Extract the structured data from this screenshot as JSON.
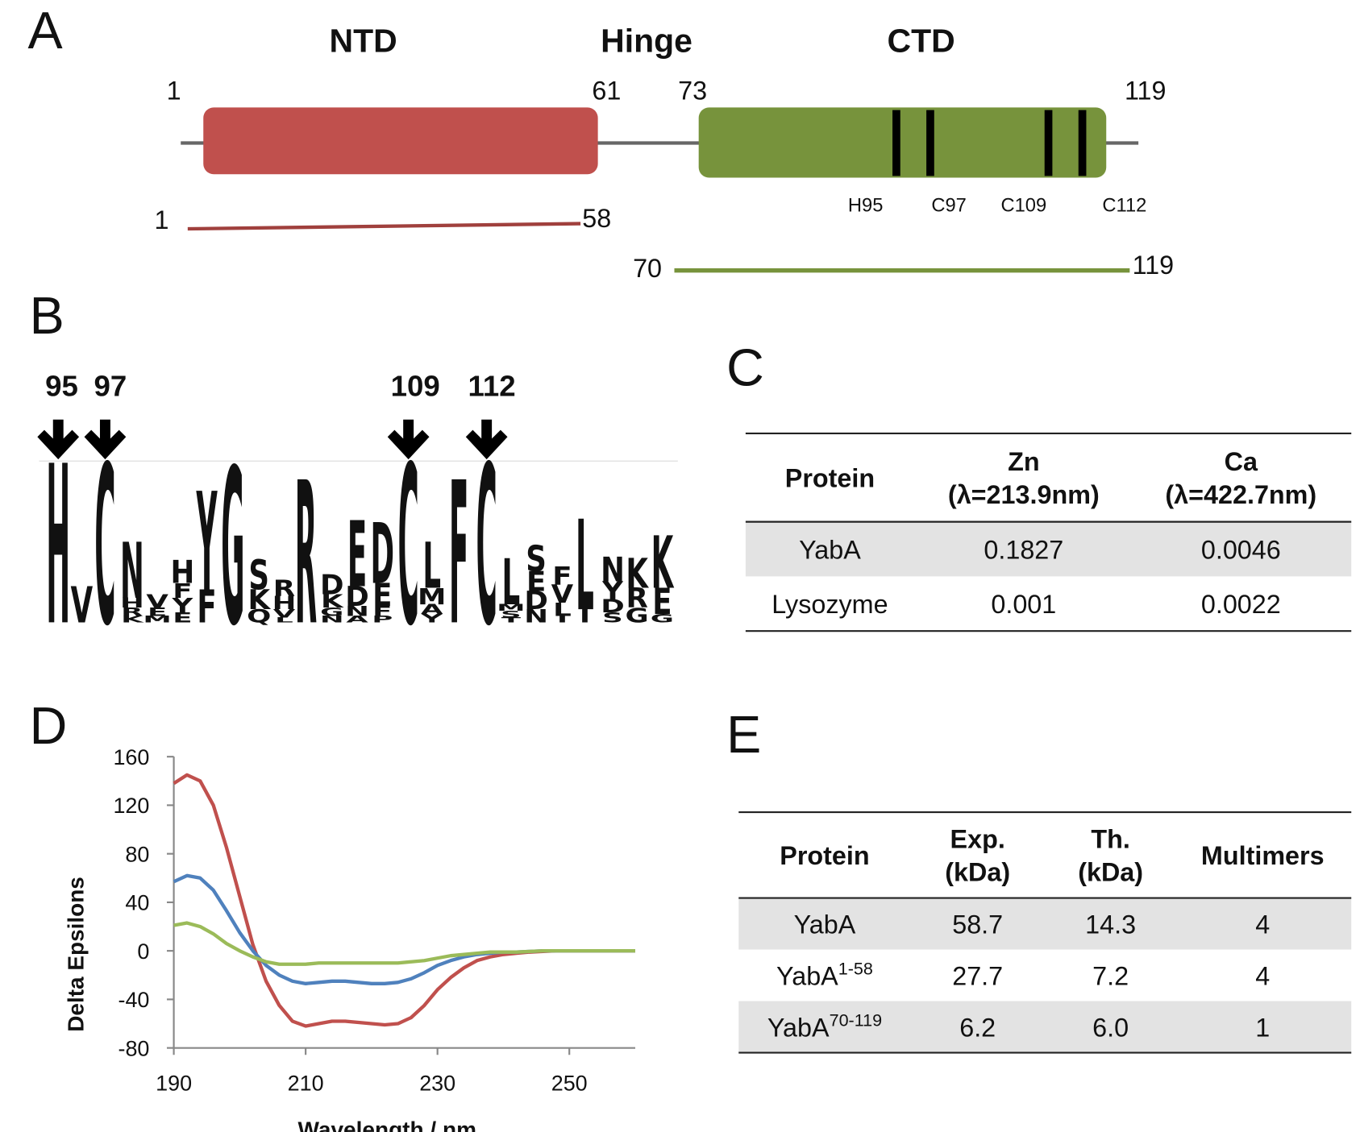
{
  "panel_a": {
    "label": "A",
    "domains": [
      "NTD",
      "Hinge",
      "CTD"
    ],
    "positions": [
      "1",
      "61",
      "73",
      "119"
    ],
    "residues": [
      "H95",
      "C97",
      "C109",
      "C112"
    ],
    "constructs": [
      {
        "start": "1",
        "end": "58"
      },
      {
        "start": "70",
        "end": "119"
      }
    ]
  },
  "panel_b": {
    "label": "B",
    "positions": [
      "95",
      "97",
      "109",
      "112"
    ],
    "letter_colors": {
      "H": "#1414c8",
      "K": "#1414c8",
      "R": "#1414c8",
      "C": "#21c321",
      "G": "#21c321",
      "Y": "#21c321",
      "S": "#21c321",
      "T": "#21c321",
      "N": "#c814c8",
      "Q": "#c814c8",
      "E": "#c81414",
      "D": "#c81414",
      "V": "#000000",
      "F": "#000000",
      "L": "#000000",
      "M": "#000000",
      "A": "#000000",
      "I": "#000000",
      "P": "#000000"
    },
    "columns": [
      [
        {
          "letter": "H",
          "height": 97
        }
      ],
      [
        {
          "letter": "V",
          "height": 22
        }
      ],
      [
        {
          "letter": "C",
          "height": 97
        }
      ],
      [
        {
          "letter": "N",
          "height": 34
        },
        {
          "letter": "H",
          "height": 6
        },
        {
          "letter": "R",
          "height": 5
        },
        {
          "letter": "K",
          "height": 4
        }
      ],
      [
        {
          "letter": "V",
          "height": 8
        },
        {
          "letter": "E",
          "height": 5
        },
        {
          "letter": "M",
          "height": 4
        }
      ],
      [
        {
          "letter": "H",
          "height": 14
        },
        {
          "letter": "F",
          "height": 9
        },
        {
          "letter": "Y",
          "height": 9
        },
        {
          "letter": "E",
          "height": 6
        }
      ],
      [
        {
          "letter": "Y",
          "height": 60
        },
        {
          "letter": "F",
          "height": 20
        }
      ],
      [
        {
          "letter": "G",
          "height": 95
        }
      ],
      [
        {
          "letter": "S",
          "height": 18
        },
        {
          "letter": "K",
          "height": 12
        },
        {
          "letter": "Q",
          "height": 8
        }
      ],
      [
        {
          "letter": "R",
          "height": 10
        },
        {
          "letter": "H",
          "height": 8
        },
        {
          "letter": "V",
          "height": 5
        },
        {
          "letter": "L",
          "height": 3
        }
      ],
      [
        {
          "letter": "R",
          "height": 87
        }
      ],
      [
        {
          "letter": "D",
          "height": 12
        },
        {
          "letter": "K",
          "height": 8
        },
        {
          "letter": "G",
          "height": 5
        },
        {
          "letter": "N",
          "height": 4
        }
      ],
      [
        {
          "letter": "E",
          "height": 40
        },
        {
          "letter": "D",
          "height": 12
        },
        {
          "letter": "N",
          "height": 6
        },
        {
          "letter": "A",
          "height": 4
        }
      ],
      [
        {
          "letter": "D",
          "height": 37
        },
        {
          "letter": "E",
          "height": 14
        },
        {
          "letter": "F",
          "height": 6
        },
        {
          "letter": "P",
          "height": 4
        }
      ],
      [
        {
          "letter": "C",
          "height": 97
        }
      ],
      [
        {
          "letter": "L",
          "height": 28
        },
        {
          "letter": "M",
          "height": 10
        },
        {
          "letter": "A",
          "height": 6
        },
        {
          "letter": "Y",
          "height": 5
        }
      ],
      [
        {
          "letter": "F",
          "height": 87
        }
      ],
      [
        {
          "letter": "C",
          "height": 97
        }
      ],
      [
        {
          "letter": "L",
          "height": 28
        },
        {
          "letter": "M",
          "height": 4
        },
        {
          "letter": "S",
          "height": 4
        },
        {
          "letter": "T",
          "height": 3
        }
      ],
      [
        {
          "letter": "S",
          "height": 16
        },
        {
          "letter": "E",
          "height": 12
        },
        {
          "letter": "D",
          "height": 11
        },
        {
          "letter": "N",
          "height": 8
        }
      ],
      [
        {
          "letter": "F",
          "height": 11
        },
        {
          "letter": "V",
          "height": 11
        },
        {
          "letter": "L",
          "height": 8
        },
        {
          "letter": "I",
          "height": 4
        }
      ],
      [
        {
          "letter": "L",
          "height": 55
        },
        {
          "letter": "I",
          "height": 8
        }
      ],
      [
        {
          "letter": "N",
          "height": 15
        },
        {
          "letter": "Y",
          "height": 11
        },
        {
          "letter": "D",
          "height": 8
        },
        {
          "letter": "S",
          "height": 6
        }
      ],
      [
        {
          "letter": "K",
          "height": 18
        },
        {
          "letter": "R",
          "height": 12
        },
        {
          "letter": "G",
          "height": 9
        }
      ],
      [
        {
          "letter": "K",
          "height": 32
        },
        {
          "letter": "E",
          "height": 16
        },
        {
          "letter": "G",
          "height": 5
        }
      ]
    ]
  },
  "panel_c": {
    "label": "C",
    "header": [
      {
        "line1": "Protein"
      },
      {
        "line1": "Zn",
        "line2": "(λ=213.9nm)"
      },
      {
        "line1": "Ca",
        "line2": "(λ=422.7nm)"
      }
    ],
    "rows": [
      [
        "YabA",
        "0.1827",
        "0.0046"
      ],
      [
        "Lysozyme",
        "0.001",
        "0.0022"
      ]
    ]
  },
  "chart_data": {
    "type": "line",
    "panel_label": "D",
    "x_label": "Wavelength / nm",
    "y_label": "Delta Epsilons",
    "x": [
      190,
      192,
      194,
      196,
      198,
      200,
      202,
      204,
      206,
      208,
      210,
      212,
      214,
      216,
      218,
      220,
      222,
      224,
      226,
      228,
      230,
      232,
      234,
      236,
      238,
      240,
      242,
      244,
      246,
      248,
      250,
      252,
      254,
      256,
      258,
      260
    ],
    "series": [
      {
        "color": "#c0504d",
        "values": [
          138,
          145,
          140,
          120,
          85,
          45,
          5,
          -25,
          -45,
          -58,
          -62,
          -60,
          -58,
          -58,
          -59,
          -60,
          -61,
          -60,
          -55,
          -45,
          -32,
          -22,
          -14,
          -8,
          -5,
          -3,
          -2,
          -1,
          -0.5,
          0,
          0,
          0,
          0,
          0,
          0,
          0
        ]
      },
      {
        "color": "#4f81bd",
        "values": [
          57,
          62,
          60,
          50,
          33,
          15,
          0,
          -12,
          -20,
          -25,
          -27,
          -26,
          -25,
          -25,
          -26,
          -27,
          -27,
          -26,
          -23,
          -18,
          -12,
          -8,
          -5,
          -3,
          -2,
          -1,
          -1,
          -0.5,
          0,
          0,
          0,
          0,
          0,
          0,
          0,
          0
        ]
      },
      {
        "color": "#9bbb59",
        "values": [
          21,
          23,
          20,
          14,
          6,
          0,
          -5,
          -9,
          -11,
          -11,
          -11,
          -10,
          -10,
          -10,
          -10,
          -10,
          -10,
          -10,
          -9,
          -8,
          -6,
          -4,
          -3,
          -2,
          -1,
          -1,
          -1,
          -0.5,
          0,
          0,
          0,
          0,
          0,
          0,
          0,
          0
        ]
      }
    ],
    "xlim": [
      190,
      260
    ],
    "xticks": [
      190,
      210,
      230,
      250
    ],
    "ylim": [
      -80,
      160
    ],
    "yticks": [
      -80,
      -40,
      0,
      40,
      80,
      120,
      160
    ]
  },
  "panel_e": {
    "label": "E",
    "header": [
      {
        "line1": "Protein"
      },
      {
        "line1": "Exp.",
        "line2": "(kDa)"
      },
      {
        "line1": "Th.",
        "line2": "(kDa)"
      },
      {
        "line1": "Multimers"
      }
    ],
    "rows": [
      [
        {
          "name": "YabA"
        },
        "58.7",
        "14.3",
        "4"
      ],
      [
        {
          "name": "YabA",
          "sup": "1-58"
        },
        "27.7",
        "7.2",
        "4"
      ],
      [
        {
          "name": "YabA",
          "sup": "70-119"
        },
        "6.2",
        "6.0",
        "1"
      ]
    ]
  }
}
